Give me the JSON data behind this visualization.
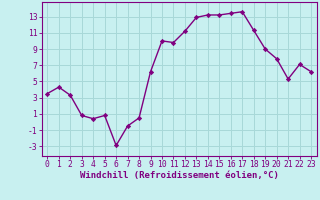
{
  "x": [
    0,
    1,
    2,
    3,
    4,
    5,
    6,
    7,
    8,
    9,
    10,
    11,
    12,
    13,
    14,
    15,
    16,
    17,
    18,
    19,
    20,
    21,
    22,
    23
  ],
  "y": [
    3.5,
    4.3,
    3.3,
    0.8,
    0.4,
    0.8,
    -2.9,
    -0.5,
    0.5,
    6.2,
    10.0,
    9.8,
    11.2,
    12.9,
    13.2,
    13.2,
    13.4,
    13.6,
    11.3,
    9.0,
    7.8,
    5.3,
    7.1,
    6.2
  ],
  "line_color": "#800080",
  "marker": "D",
  "marker_size": 2.2,
  "bg_color": "#c8f0f0",
  "grid_color": "#a8d8d8",
  "xlabel": "Windchill (Refroidissement éolien,°C)",
  "ylabel": "",
  "yticks": [
    -3,
    -1,
    1,
    3,
    5,
    7,
    9,
    11,
    13
  ],
  "ylim": [
    -4.2,
    14.8
  ],
  "xlim": [
    -0.5,
    23.5
  ],
  "xtick_labels": [
    "0",
    "1",
    "2",
    "3",
    "4",
    "5",
    "6",
    "7",
    "8",
    "9",
    "10",
    "11",
    "12",
    "13",
    "14",
    "15",
    "16",
    "17",
    "18",
    "19",
    "20",
    "21",
    "22",
    "23"
  ],
  "label_fontsize": 6.5,
  "tick_fontsize": 5.8,
  "line_width": 1.0
}
